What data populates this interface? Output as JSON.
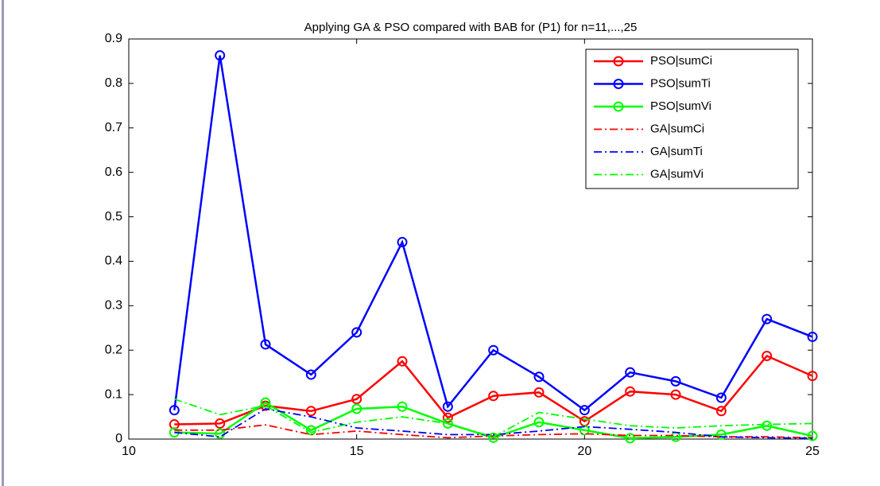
{
  "chart_data": {
    "type": "line",
    "title": "Applying GA & PSO compared with BAB for (P1) for n=11,...,25",
    "x": [
      11,
      12,
      13,
      14,
      15,
      16,
      17,
      18,
      19,
      20,
      21,
      22,
      23,
      24,
      25
    ],
    "series": [
      {
        "name": "PSO|sumCi",
        "color": "#ff0000",
        "linestyle": "solid",
        "marker": "o",
        "values": [
          0.033,
          0.035,
          0.075,
          0.063,
          0.09,
          0.175,
          0.048,
          0.097,
          0.105,
          0.04,
          0.107,
          0.1,
          0.063,
          0.187,
          0.142
        ]
      },
      {
        "name": "PSO|sumTi",
        "color": "#0000ff",
        "linestyle": "solid",
        "marker": "o",
        "values": [
          0.065,
          0.863,
          0.213,
          0.145,
          0.24,
          0.443,
          0.073,
          0.2,
          0.14,
          0.065,
          0.15,
          0.13,
          0.093,
          0.27,
          0.23
        ]
      },
      {
        "name": "PSO|sumVi",
        "color": "#00ff00",
        "linestyle": "solid",
        "marker": "o",
        "values": [
          0.015,
          0.012,
          0.082,
          0.02,
          0.068,
          0.073,
          0.035,
          0.003,
          0.038,
          0.02,
          0.002,
          0.005,
          0.01,
          0.03,
          0.007
        ]
      },
      {
        "name": "GA|sumCi",
        "color": "#ff0000",
        "linestyle": "dashdot",
        "marker": "none",
        "values": [
          0.02,
          0.02,
          0.032,
          0.01,
          0.018,
          0.01,
          0.003,
          0.007,
          0.01,
          0.012,
          0.008,
          0.008,
          0.005,
          0.005,
          0.003
        ]
      },
      {
        "name": "GA|sumTi",
        "color": "#0000ff",
        "linestyle": "dashdot",
        "marker": "none",
        "values": [
          0.015,
          0.005,
          0.068,
          0.05,
          0.025,
          0.018,
          0.01,
          0.01,
          0.018,
          0.028,
          0.022,
          0.015,
          0.005,
          0.003,
          0.002
        ]
      },
      {
        "name": "GA|sumVi",
        "color": "#00ff00",
        "linestyle": "dashdot",
        "marker": "none",
        "values": [
          0.09,
          0.055,
          0.075,
          0.015,
          0.038,
          0.05,
          0.035,
          0.005,
          0.06,
          0.045,
          0.03,
          0.025,
          0.03,
          0.033,
          0.035
        ]
      }
    ],
    "xlim": [
      10,
      25
    ],
    "xticks": [
      10,
      15,
      20,
      25
    ],
    "ylim": [
      0,
      0.9
    ],
    "yticks": [
      0,
      0.1,
      0.2,
      0.3,
      0.4,
      0.5,
      0.6,
      0.7,
      0.8,
      0.9
    ],
    "grid": false,
    "legend": "upper right"
  }
}
